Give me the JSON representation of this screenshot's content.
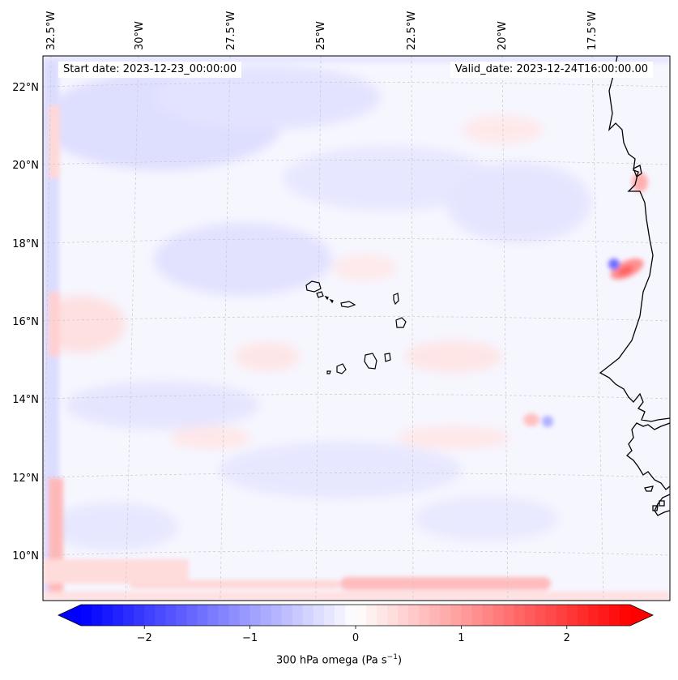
{
  "start_date": "Start date: 2023-12-23_00:00:00",
  "valid_date": "Valid_date: 2023-12-24T16:00:00.00",
  "lon_labels": [
    "32.5°W",
    "30°W",
    "27.5°W",
    "25°W",
    "22.5°W",
    "20°W",
    "17.5°W"
  ],
  "lat_labels": [
    "22°N",
    "20°N",
    "18°N",
    "16°N",
    "14°N",
    "12°N",
    "10°N"
  ],
  "colorbar": {
    "label_main": "300 hPa omega (Pa s",
    "label_exp": "−1",
    "label_end": ")",
    "tick_labels": [
      "−2",
      "−1",
      "0",
      "1",
      "2"
    ],
    "ticks": [
      -2,
      -1,
      0,
      1,
      2
    ],
    "range": [
      -2.6,
      2.6
    ],
    "cmap": "bwr",
    "extend": "both"
  },
  "chart_data": {
    "type": "heatmap",
    "variable": "300 hPa omega",
    "units": "Pa s-1",
    "vmin": -2.6,
    "vmax": 2.6,
    "lon_range": [
      -33.5,
      -15.0
    ],
    "lat_range": [
      8.8,
      22.8
    ],
    "features": [
      {
        "name": "strong couplet near Mauritanian coast",
        "lon": -16.9,
        "lat": 17.2,
        "value_min": -1.0,
        "value_max": 1.0
      },
      {
        "name": "positive band along southern boundary",
        "lat": 9.1,
        "value": 0.6
      },
      {
        "name": "positive band along western boundary",
        "lon": -32.5,
        "value": 0.5
      }
    ]
  },
  "colors": {
    "coast": "#000000",
    "grid": "#c8c8c8",
    "neg_max": "#0000ff",
    "pos_max": "#ff0000"
  }
}
